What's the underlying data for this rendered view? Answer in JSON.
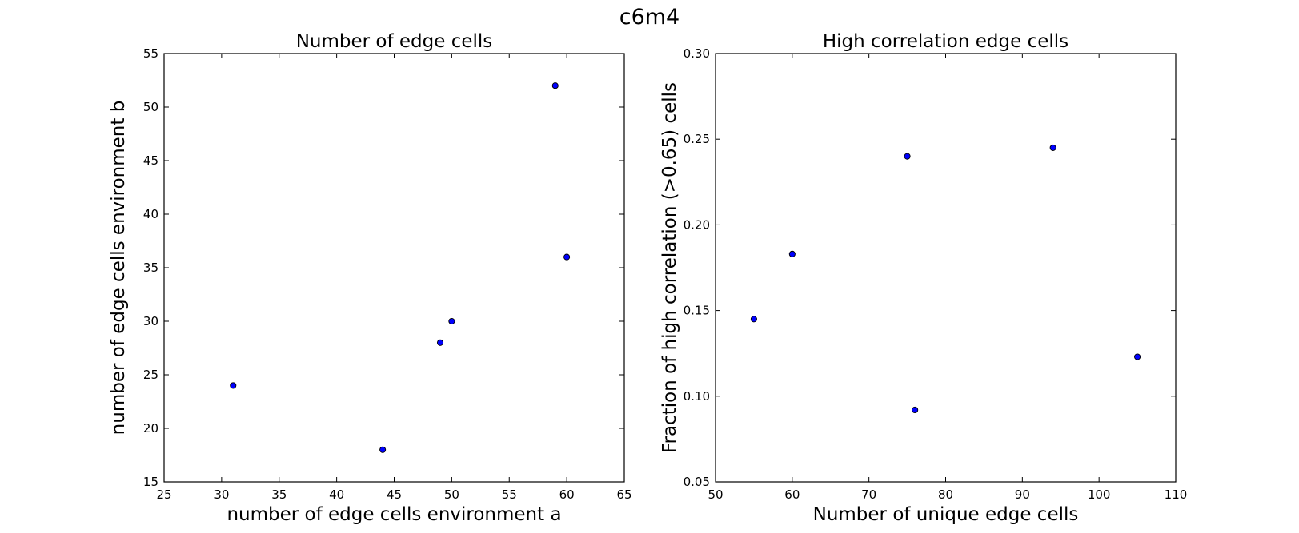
{
  "figure": {
    "suptitle": "c6m4"
  },
  "chart_data": [
    {
      "type": "scatter",
      "title": "Number of edge cells",
      "xlabel": "number of edge cells environment a",
      "ylabel": "number of edge cells environment b",
      "xlim": [
        25,
        65
      ],
      "ylim": [
        15,
        55
      ],
      "xticks": [
        "25",
        "30",
        "35",
        "40",
        "45",
        "50",
        "55",
        "60",
        "65"
      ],
      "yticks": [
        "15",
        "20",
        "25",
        "30",
        "35",
        "40",
        "45",
        "50",
        "55"
      ],
      "grid": false,
      "marker_color": "#0000ff",
      "points": [
        {
          "x": 31,
          "y": 24
        },
        {
          "x": 44,
          "y": 18
        },
        {
          "x": 49,
          "y": 28
        },
        {
          "x": 50,
          "y": 30
        },
        {
          "x": 59,
          "y": 52
        },
        {
          "x": 60,
          "y": 36
        }
      ]
    },
    {
      "type": "scatter",
      "title": "High correlation edge cells",
      "xlabel": "Number of unique edge cells",
      "ylabel": "Fraction of high correlation (>0.65) cells",
      "xlim": [
        50,
        110
      ],
      "ylim": [
        0.05,
        0.3
      ],
      "xticks": [
        "50",
        "60",
        "70",
        "80",
        "90",
        "100",
        "110"
      ],
      "yticks": [
        "0.05",
        "0.10",
        "0.15",
        "0.20",
        "0.25",
        "0.30"
      ],
      "grid": false,
      "marker_color": "#0000ff",
      "points": [
        {
          "x": 55,
          "y": 0.145
        },
        {
          "x": 60,
          "y": 0.183
        },
        {
          "x": 75,
          "y": 0.24
        },
        {
          "x": 76,
          "y": 0.092
        },
        {
          "x": 94,
          "y": 0.245
        },
        {
          "x": 105,
          "y": 0.123
        }
      ]
    }
  ]
}
